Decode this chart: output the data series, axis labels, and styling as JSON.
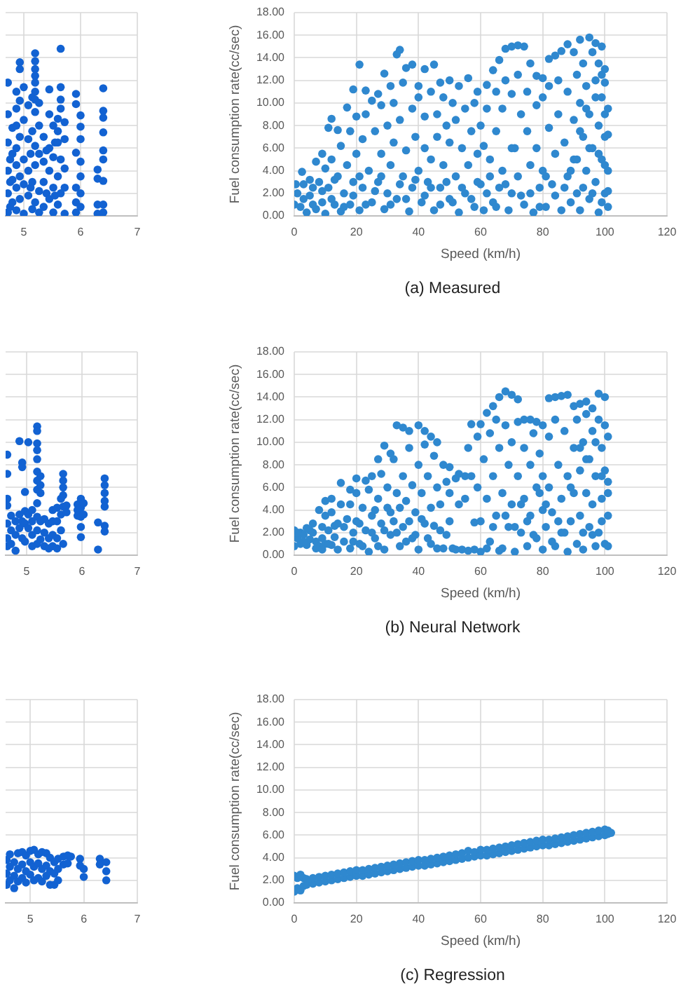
{
  "chart_data": [
    {
      "type": "scatter",
      "color": "#1262d2",
      "marker": "circle",
      "grid": true,
      "tick_labels": "x",
      "xlim": [
        4.68,
        7
      ],
      "xticks": [
        5,
        6,
        7
      ],
      "ylim": [
        0,
        18
      ],
      "yticks": [
        {
          "value": 0,
          "label": null
        },
        {
          "value": 2,
          "label": null
        },
        {
          "value": 4,
          "label": null
        },
        {
          "value": 6,
          "label": null
        },
        {
          "value": 8,
          "label": null
        },
        {
          "value": 10,
          "label": null
        },
        {
          "value": 12,
          "label": null
        },
        {
          "value": 14,
          "label": null
        },
        {
          "value": 16,
          "label": null
        },
        {
          "value": 18,
          "label": null
        }
      ],
      "x": [
        4.72,
        4.72,
        4.72,
        4.72,
        4.72,
        4.72,
        4.76,
        4.76,
        4.76,
        4.8,
        4.8,
        4.8,
        4.8,
        4.87,
        4.87,
        4.87,
        4.87,
        4.87,
        4.87,
        4.87,
        4.93,
        4.93,
        4.93,
        4.93,
        4.93,
        4.93,
        5.0,
        5.0,
        5.0,
        5.0,
        5.0,
        5.08,
        5.08,
        5.08,
        5.08,
        5.12,
        5.12,
        5.15,
        5.15,
        5.15,
        5.15,
        5.2,
        5.2,
        5.2,
        5.2,
        5.2,
        5.2,
        5.2,
        5.2,
        5.2,
        5.2,
        5.2,
        5.27,
        5.27,
        5.27,
        5.27,
        5.27,
        5.35,
        5.35,
        5.35,
        5.35,
        5.4,
        5.4,
        5.45,
        5.45,
        5.45,
        5.45,
        5.45,
        5.52,
        5.52,
        5.52,
        5.52,
        5.55,
        5.55,
        5.6,
        5.6,
        5.6,
        5.6,
        5.6,
        5.65,
        5.65,
        5.65,
        5.65,
        5.65,
        5.65,
        5.72,
        5.72,
        5.72,
        5.72,
        5.72,
        5.92,
        5.92,
        5.92,
        5.92,
        5.92,
        5.92,
        6.0,
        6.0,
        6.0,
        6.0,
        6.0,
        6.0,
        6.0,
        6.3,
        6.3,
        6.3,
        6.3,
        6.4,
        6.4,
        6.4,
        6.4,
        6.4,
        6.4,
        6.4,
        6.4,
        6.4
      ],
      "values": [
        11.8,
        9.0,
        6.5,
        4.0,
        2.0,
        0.3,
        5.0,
        3.0,
        0.8,
        7.8,
        5.5,
        3.2,
        1.2,
        11.0,
        9.5,
        8.0,
        6.0,
        4.5,
        2.5,
        0.5,
        13.6,
        13.0,
        10.2,
        7.0,
        3.5,
        1.5,
        11.4,
        8.5,
        5.0,
        2.8,
        0.2,
        9.8,
        6.8,
        4.0,
        1.8,
        5.5,
        2.5,
        10.5,
        7.5,
        3.0,
        0.6,
        14.4,
        13.7,
        13.0,
        12.4,
        11.8,
        11.0,
        10.3,
        9.2,
        6.2,
        4.5,
        1.2,
        10.0,
        8.0,
        5.5,
        2.2,
        0.3,
        7.0,
        4.8,
        3.0,
        0.8,
        5.8,
        2.0,
        11.2,
        9.0,
        6.0,
        4.0,
        1.5,
        8.0,
        5.2,
        2.5,
        0.3,
        6.5,
        1.8,
        8.6,
        7.5,
        6.5,
        3.5,
        1.0,
        14.8,
        11.4,
        10.3,
        9.5,
        5.0,
        2.0,
        8.3,
        6.8,
        4.2,
        2.5,
        0.2,
        10.8,
        9.9,
        5.6,
        2.5,
        1.2,
        0.3,
        8.9,
        7.9,
        6.8,
        4.8,
        3.5,
        2.0,
        0.8,
        4.1,
        3.3,
        1.0,
        0.2,
        11.3,
        9.3,
        8.7,
        7.4,
        5.8,
        5.0,
        3.1,
        1.0,
        0.3
      ]
    },
    {
      "type": "scatter",
      "color": "#2f88cf",
      "marker": "circle",
      "grid": true,
      "xlabel": "Speed (km/h)",
      "ylabel": "Fuel consumption rate(cc/sec)",
      "annotations": [
        "(a) Measured"
      ],
      "xlim": [
        0,
        120
      ],
      "xticks": [
        0,
        20,
        40,
        60,
        80,
        100,
        120
      ],
      "ylim": [
        0,
        18
      ],
      "yticks": [
        {
          "value": 0,
          "label": "0.00"
        },
        {
          "value": 2,
          "label": "2.00"
        },
        {
          "value": 4,
          "label": "4.00"
        },
        {
          "value": 6,
          "label": "6.00"
        },
        {
          "value": 8,
          "label": "8.00"
        },
        {
          "value": 10,
          "label": "10.00"
        },
        {
          "value": 12,
          "label": "12.00"
        },
        {
          "value": 14,
          "label": "14.00"
        },
        {
          "value": 16,
          "label": "16.00"
        },
        {
          "value": 18,
          "label": "18.00"
        }
      ],
      "x": [
        0.5,
        2.5,
        5,
        7,
        9,
        11,
        12,
        14,
        17,
        19,
        21,
        23,
        25,
        27,
        29,
        31,
        33,
        34,
        36,
        38,
        40,
        42,
        45,
        47,
        50,
        53,
        56,
        59,
        62,
        64,
        66,
        68,
        70,
        72,
        74,
        76,
        78,
        80,
        82,
        84,
        86,
        88,
        90,
        92,
        95,
        97,
        99,
        100,
        101,
        0,
        1,
        2,
        3,
        4,
        5,
        6,
        7,
        8,
        9,
        10,
        10,
        11,
        12,
        13,
        14,
        15,
        15,
        16,
        17,
        18,
        18,
        19,
        20,
        20,
        21,
        22,
        22,
        23,
        24,
        25,
        26,
        27,
        28,
        28,
        29,
        30,
        30,
        31,
        32,
        32,
        33,
        34,
        35,
        35,
        36,
        37,
        38,
        38,
        39,
        40,
        40,
        41,
        42,
        42,
        43,
        44,
        44,
        45,
        46,
        46,
        47,
        48,
        48,
        49,
        50,
        50,
        51,
        52,
        52,
        53,
        54,
        55,
        55,
        56,
        57,
        58,
        58,
        59,
        60,
        60,
        61,
        61,
        62,
        63,
        64,
        65,
        65,
        66,
        67,
        67,
        68,
        69,
        70,
        70,
        71,
        72,
        72,
        73,
        74,
        75,
        75,
        76,
        77,
        78,
        78,
        79,
        80,
        80,
        81,
        82,
        82,
        83,
        84,
        85,
        85,
        86,
        87,
        88,
        88,
        89,
        90,
        90,
        91,
        91,
        92,
        92,
        93,
        93,
        94,
        94,
        95,
        95,
        96,
        96,
        97,
        97,
        98,
        98,
        98,
        99,
        99,
        100,
        100,
        100,
        101,
        101,
        101,
        3,
        6,
        9,
        12,
        13,
        16,
        19,
        21,
        23,
        26,
        28,
        31,
        34,
        36,
        39,
        42,
        44,
        47,
        49,
        51,
        54,
        57,
        59,
        62,
        63,
        65,
        68,
        70,
        73,
        76,
        79,
        81,
        84,
        87,
        89,
        91,
        92,
        93,
        94,
        95,
        96,
        97,
        98,
        99,
        99,
        100,
        100,
        101
      ],
      "values": [
        2.8,
        3.9,
        3.2,
        4.8,
        5.5,
        7.8,
        8.6,
        7.6,
        9.6,
        11.2,
        13.4,
        11.1,
        10.2,
        10.8,
        12.6,
        11.5,
        14.3,
        14.7,
        13.1,
        13.4,
        11.5,
        13.0,
        13.4,
        11.8,
        12.0,
        11.5,
        12.2,
        11.0,
        11.6,
        12.9,
        13.8,
        14.8,
        15.0,
        15.1,
        15.0,
        13.5,
        12.4,
        12.2,
        13.9,
        14.2,
        14.6,
        15.2,
        14.5,
        15.6,
        15.8,
        15.3,
        15.0,
        13.0,
        7.2,
        1.0,
        2.0,
        0.8,
        1.5,
        0.3,
        1.8,
        2.5,
        0.6,
        3.0,
        1.2,
        4.2,
        0.2,
        2.5,
        5.0,
        1.0,
        3.5,
        6.2,
        0.4,
        2.0,
        4.5,
        7.5,
        1.0,
        3.0,
        8.8,
        5.5,
        0.5,
        2.5,
        6.8,
        9.0,
        4.0,
        1.2,
        7.5,
        3.0,
        9.8,
        5.5,
        0.6,
        2.0,
        8.0,
        4.5,
        10.0,
        6.5,
        1.5,
        8.5,
        3.5,
        11.8,
        5.8,
        0.4,
        9.5,
        2.5,
        7.0,
        4.0,
        10.5,
        1.2,
        6.0,
        8.8,
        3.0,
        11.0,
        5.0,
        0.5,
        9.0,
        7.0,
        2.5,
        10.5,
        4.5,
        8.0,
        1.5,
        6.5,
        10.0,
        3.5,
        8.5,
        0.3,
        6.0,
        9.5,
        2.0,
        4.5,
        7.5,
        0.8,
        10.0,
        5.5,
        2.8,
        8.0,
        0.5,
        6.2,
        9.5,
        3.5,
        1.2,
        11.0,
        7.5,
        2.5,
        9.5,
        4.0,
        12.0,
        0.5,
        10.8,
        2.0,
        6.0,
        12.5,
        3.5,
        9.0,
        1.0,
        7.5,
        11.0,
        4.5,
        0.3,
        9.8,
        6.0,
        2.5,
        10.5,
        4.0,
        0.8,
        7.8,
        11.5,
        2.8,
        5.5,
        12.0,
        9.0,
        0.5,
        6.5,
        3.5,
        11.0,
        1.2,
        8.5,
        5.0,
        12.5,
        2.0,
        10.0,
        0.5,
        7.0,
        13.5,
        4.0,
        11.5,
        1.5,
        9.0,
        14.5,
        6.0,
        12.0,
        3.0,
        0.3,
        8.0,
        13.5,
        10.5,
        5.0,
        2.0,
        11.8,
        7.0,
        4.0,
        0.8,
        9.5,
        2.8,
        1.0,
        2.2,
        1.5,
        3.2,
        0.8,
        1.8,
        3.5,
        1.0,
        2.2,
        3.5,
        1.0,
        2.8,
        1.5,
        3.2,
        1.8,
        2.5,
        1.0,
        3.0,
        1.2,
        2.5,
        1.5,
        3.0,
        2.0,
        5.0,
        0.8,
        2.8,
        6.0,
        1.8,
        2.0,
        0.8,
        3.5,
        1.8,
        2.5,
        4.0,
        5.0,
        7.5,
        2.5,
        9.5,
        6.0,
        2.0,
        10.5,
        5.5,
        1.2,
        12.5,
        9.0,
        4.5,
        2.2
      ]
    },
    {
      "type": "scatter",
      "color": "#1262d2",
      "marker": "circle",
      "grid": true,
      "tick_labels": "x",
      "xlim": [
        4.62,
        7
      ],
      "xticks": [
        5,
        6,
        7
      ],
      "ylim": [
        0,
        18
      ],
      "yticks": [
        {
          "value": 0,
          "label": null
        },
        {
          "value": 2,
          "label": null
        },
        {
          "value": 4,
          "label": null
        },
        {
          "value": 6,
          "label": null
        },
        {
          "value": 8,
          "label": null
        },
        {
          "value": 10,
          "label": null
        },
        {
          "value": 12,
          "label": null
        },
        {
          "value": 14,
          "label": null
        },
        {
          "value": 16,
          "label": null
        },
        {
          "value": 18,
          "label": null
        }
      ],
      "x": [
        4.65,
        4.65,
        4.65,
        4.65,
        4.65,
        4.65,
        4.65,
        4.72,
        4.72,
        4.72,
        4.8,
        4.8,
        4.8,
        4.87,
        4.87,
        4.87,
        4.92,
        4.92,
        4.92,
        4.92,
        4.97,
        4.97,
        4.97,
        4.97,
        5.03,
        5.03,
        5.03,
        5.1,
        5.1,
        5.1,
        5.1,
        5.19,
        5.19,
        5.19,
        5.19,
        5.19,
        5.19,
        5.19,
        5.19,
        5.19,
        5.19,
        5.19,
        5.19,
        5.25,
        5.25,
        5.25,
        5.25,
        5.25,
        5.32,
        5.32,
        5.32,
        5.4,
        5.4,
        5.4,
        5.47,
        5.47,
        5.47,
        5.47,
        5.55,
        5.55,
        5.55,
        5.55,
        5.62,
        5.62,
        5.62,
        5.66,
        5.66,
        5.66,
        5.66,
        5.66,
        5.66,
        5.72,
        5.72,
        5.92,
        5.92,
        5.92,
        5.98,
        5.98,
        5.98,
        5.98,
        5.98,
        6.03,
        6.03,
        6.29,
        6.29,
        6.41,
        6.41,
        6.41,
        6.41,
        6.41,
        6.41,
        6.41
      ],
      "values": [
        8.9,
        7.2,
        5.0,
        4.4,
        2.8,
        1.5,
        0.8,
        3.5,
        2.2,
        1.0,
        3.0,
        1.8,
        0.4,
        10.1,
        3.6,
        2.4,
        8.2,
        7.8,
        3.0,
        1.5,
        5.6,
        3.9,
        2.8,
        1.2,
        10.0,
        3.6,
        2.4,
        4.0,
        3.0,
        1.8,
        0.8,
        11.4,
        11.0,
        9.9,
        9.3,
        8.5,
        7.4,
        6.6,
        5.8,
        4.6,
        3.4,
        2.2,
        1.0,
        7.0,
        6.2,
        5.5,
        3.0,
        1.4,
        3.2,
        2.0,
        0.8,
        2.8,
        1.5,
        0.6,
        4.0,
        3.0,
        1.8,
        0.8,
        4.2,
        3.0,
        1.5,
        0.6,
        5.0,
        3.6,
        2.2,
        7.2,
        6.6,
        6.0,
        5.3,
        4.3,
        1.0,
        4.4,
        3.8,
        4.5,
        4.0,
        3.5,
        5.0,
        4.2,
        3.4,
        2.5,
        1.6,
        4.6,
        3.6,
        2.9,
        0.5,
        6.8,
        6.2,
        5.5,
        4.8,
        4.3,
        2.6,
        2.1
      ]
    },
    {
      "type": "scatter",
      "color": "#2f88cf",
      "marker": "circle",
      "grid": true,
      "xlabel": "Speed (km/h)",
      "ylabel": "Fuel consumption rate(cc/sec)",
      "annotations": [
        "(b) Neural Network"
      ],
      "xlim": [
        0,
        120
      ],
      "xticks": [
        0,
        20,
        40,
        60,
        80,
        100,
        120
      ],
      "ylim": [
        0,
        18
      ],
      "yticks": [
        {
          "value": 0,
          "label": "0.00"
        },
        {
          "value": 2,
          "label": "2.00"
        },
        {
          "value": 4,
          "label": "4.00"
        },
        {
          "value": 6,
          "label": "6.00"
        },
        {
          "value": 8,
          "label": "8.00"
        },
        {
          "value": 10,
          "label": "10.00"
        },
        {
          "value": 12,
          "label": "12.00"
        },
        {
          "value": 14,
          "label": "14.00"
        },
        {
          "value": 16,
          "label": "16.00"
        },
        {
          "value": 18,
          "label": "18.00"
        }
      ],
      "x": [
        0,
        2,
        4,
        6,
        8,
        10,
        12,
        15,
        18,
        20,
        23,
        25,
        27,
        29,
        31,
        33,
        35,
        37,
        40,
        42,
        44,
        46,
        48,
        50,
        53,
        55,
        57,
        60,
        62,
        64,
        66,
        68,
        70,
        72,
        74,
        76,
        78,
        80,
        82,
        84,
        86,
        88,
        90,
        92,
        94,
        96,
        98,
        100,
        101,
        0,
        1,
        2,
        3,
        4,
        5,
        6,
        7,
        8,
        9,
        9,
        10,
        10,
        11,
        12,
        12,
        13,
        14,
        15,
        16,
        17,
        18,
        18,
        19,
        20,
        20,
        21,
        22,
        23,
        24,
        24,
        25,
        26,
        27,
        28,
        28,
        29,
        30,
        30,
        31,
        32,
        32,
        33,
        34,
        35,
        35,
        36,
        37,
        38,
        38,
        39,
        40,
        40,
        41,
        42,
        42,
        43,
        44,
        44,
        45,
        46,
        47,
        47,
        48,
        49,
        50,
        50,
        51,
        52,
        53,
        54,
        55,
        56,
        56,
        57,
        58,
        59,
        59,
        60,
        60,
        61,
        62,
        63,
        63,
        64,
        65,
        65,
        66,
        67,
        67,
        68,
        69,
        69,
        70,
        70,
        71,
        72,
        72,
        73,
        74,
        74,
        75,
        76,
        76,
        77,
        78,
        78,
        79,
        80,
        80,
        80,
        81,
        82,
        82,
        83,
        84,
        84,
        85,
        86,
        86,
        87,
        88,
        88,
        89,
        90,
        90,
        91,
        91,
        92,
        92,
        93,
        93,
        94,
        94,
        95,
        95,
        96,
        96,
        97,
        97,
        98,
        98,
        99,
        99,
        100,
        100,
        100,
        101,
        101,
        1,
        3,
        5,
        7,
        9,
        11,
        13,
        14,
        16,
        19,
        21,
        22,
        25,
        26,
        27,
        29,
        31,
        33,
        34,
        36,
        37,
        39,
        41,
        43,
        45,
        46,
        49,
        52,
        58,
        62,
        64,
        66,
        68,
        71,
        73,
        75,
        77,
        79,
        81,
        83,
        85,
        87,
        89,
        92,
        93,
        94,
        96,
        97,
        99,
        99,
        101,
        101
      ],
      "values": [
        2.2,
        2.0,
        2.4,
        2.8,
        4.0,
        4.8,
        5.0,
        6.4,
        5.8,
        6.8,
        6.6,
        7.0,
        8.5,
        9.7,
        9.0,
        11.5,
        11.3,
        11.0,
        11.5,
        11.0,
        10.5,
        10.0,
        8.0,
        7.8,
        7.2,
        7.0,
        11.6,
        11.6,
        12.6,
        13.2,
        14.0,
        14.5,
        14.2,
        13.8,
        12.0,
        12.0,
        11.8,
        11.5,
        13.9,
        14.0,
        14.1,
        14.2,
        13.2,
        13.4,
        13.6,
        13.0,
        14.3,
        14.0,
        6.5,
        0.8,
        1.5,
        1.0,
        1.8,
        0.9,
        1.4,
        2.0,
        1.2,
        0.8,
        2.5,
        1.5,
        3.5,
        1.0,
        2.2,
        3.8,
        0.9,
        1.6,
        2.8,
        4.5,
        1.2,
        3.2,
        0.6,
        4.5,
        2.0,
        5.5,
        3.0,
        1.0,
        4.2,
        2.2,
        5.8,
        0.3,
        3.5,
        1.5,
        5.0,
        2.8,
        7.2,
        0.5,
        4.2,
        6.0,
        1.8,
        8.5,
        3.0,
        5.5,
        0.8,
        7.0,
        2.5,
        4.8,
        9.5,
        1.5,
        6.2,
        3.8,
        8.0,
        0.5,
        5.5,
        2.8,
        9.8,
        7.0,
        1.0,
        4.2,
        8.8,
        6.0,
        2.2,
        4.5,
        0.6,
        6.5,
        3.0,
        5.5,
        0.6,
        6.8,
        4.5,
        0.5,
        5.0,
        9.5,
        0.4,
        7.0,
        2.9,
        10.5,
        6.0,
        3.0,
        0.3,
        8.5,
        5.0,
        10.8,
        1.2,
        7.0,
        3.5,
        12.0,
        9.5,
        0.6,
        5.5,
        11.5,
        2.5,
        8.0,
        10.0,
        4.5,
        0.3,
        7.0,
        11.8,
        2.0,
        9.5,
        5.0,
        0.8,
        8.0,
        3.5,
        10.8,
        6.0,
        1.5,
        9.0,
        4.0,
        7.0,
        0.5,
        2.5,
        10.5,
        6.0,
        3.8,
        12.0,
        0.8,
        8.0,
        5.0,
        2.0,
        11.0,
        7.0,
        0.3,
        3.0,
        9.5,
        5.5,
        1.0,
        12.0,
        7.5,
        3.5,
        10.0,
        0.5,
        5.5,
        12.5,
        2.5,
        8.5,
        11.0,
        4.5,
        0.8,
        7.0,
        12.0,
        2.0,
        9.5,
        5.0,
        11.5,
        1.0,
        7.5,
        3.5,
        0.8,
        2.0,
        1.2,
        2.2,
        0.6,
        0.5,
        1.0,
        2.6,
        0.5,
        2.5,
        1.2,
        2.8,
        0.8,
        2.0,
        4.0,
        0.8,
        2.2,
        3.8,
        2.0,
        4.2,
        1.2,
        3.0,
        1.8,
        3.2,
        1.5,
        2.6,
        0.6,
        1.8,
        0.5,
        0.5,
        0.6,
        2.5,
        0.4,
        3.5,
        2.5,
        4.5,
        3.0,
        1.8,
        5.5,
        4.5,
        1.2,
        3.0,
        2.0,
        6.0,
        9.5,
        2.0,
        8.5,
        1.8,
        10.0,
        3.0,
        7.0,
        5.5,
        10.5
      ]
    },
    {
      "type": "scatter",
      "color": "#1262d2",
      "marker": "circle",
      "grid": true,
      "tick_labels": "x",
      "xlim": [
        4.54,
        7
      ],
      "xticks": [
        5,
        6,
        7
      ],
      "ylim": [
        0,
        18
      ],
      "yticks": [
        {
          "value": 0,
          "label": null
        },
        {
          "value": 2,
          "label": null
        },
        {
          "value": 4,
          "label": null
        },
        {
          "value": 6,
          "label": null
        },
        {
          "value": 8,
          "label": null
        },
        {
          "value": 10,
          "label": null
        },
        {
          "value": 12,
          "label": null
        },
        {
          "value": 14,
          "label": null
        },
        {
          "value": 16,
          "label": null
        },
        {
          "value": 18,
          "label": null
        }
      ],
      "x": [
        4.56,
        4.56,
        4.56,
        4.62,
        4.62,
        4.62,
        4.7,
        4.7,
        4.7,
        4.77,
        4.77,
        4.77,
        4.85,
        4.85,
        4.85,
        4.92,
        4.92,
        4.92,
        5.0,
        5.0,
        5.0,
        5.07,
        5.07,
        5.07,
        5.15,
        5.15,
        5.15,
        5.22,
        5.22,
        5.22,
        5.3,
        5.3,
        5.3,
        5.37,
        5.37,
        5.37,
        5.45,
        5.45,
        5.45,
        5.52,
        5.52,
        5.52,
        5.62,
        5.62,
        5.7,
        5.7,
        5.76,
        5.93,
        5.93,
        6.0,
        6.0,
        6.3,
        6.3,
        6.42,
        6.42,
        6.42
      ],
      "values": [
        3.8,
        2.6,
        1.6,
        4.3,
        3.2,
        2.0,
        3.6,
        2.4,
        1.3,
        4.4,
        3.0,
        1.9,
        4.5,
        3.4,
        2.2,
        4.2,
        2.8,
        1.8,
        4.6,
        3.6,
        2.5,
        4.7,
        3.2,
        2.0,
        4.3,
        3.5,
        2.2,
        4.5,
        3.0,
        1.9,
        4.4,
        3.3,
        2.4,
        4.0,
        2.8,
        1.6,
        3.6,
        2.6,
        1.6,
        3.9,
        3.0,
        2.0,
        4.1,
        3.4,
        4.2,
        3.5,
        4.1,
        3.9,
        3.3,
        3.0,
        2.3,
        3.9,
        3.4,
        3.6,
        2.8,
        2.0
      ]
    },
    {
      "type": "scatter",
      "color": "#2f88cf",
      "marker": "circle",
      "grid": true,
      "xlabel": "Speed (km/h)",
      "ylabel": "Fuel consumption rate(cc/sec)",
      "annotations": [
        "(c) Regression"
      ],
      "xlim": [
        0,
        120
      ],
      "xticks": [
        0,
        20,
        40,
        60,
        80,
        100,
        120
      ],
      "ylim": [
        0,
        18
      ],
      "yticks": [
        {
          "value": 0,
          "label": "0.00"
        },
        {
          "value": 2,
          "label": "2.00"
        },
        {
          "value": 4,
          "label": "4.00"
        },
        {
          "value": 6,
          "label": "6.00"
        },
        {
          "value": 8,
          "label": "8.00"
        },
        {
          "value": 10,
          "label": "10.00"
        },
        {
          "value": 12,
          "label": "12.00"
        },
        {
          "value": 14,
          "label": "14.00"
        },
        {
          "value": 16,
          "label": "16.00"
        },
        {
          "value": 18,
          "label": "18.00"
        }
      ],
      "x": [
        0,
        0,
        1,
        1,
        2,
        2,
        3,
        3,
        4,
        4,
        6,
        6,
        8,
        8,
        10,
        10,
        12,
        12,
        14,
        14,
        16,
        16,
        18,
        18,
        20,
        20,
        22,
        22,
        24,
        24,
        26,
        26,
        28,
        28,
        30,
        30,
        32,
        32,
        34,
        34,
        36,
        36,
        38,
        38,
        40,
        40,
        42,
        42,
        44,
        44,
        46,
        46,
        48,
        48,
        50,
        50,
        52,
        52,
        54,
        54,
        56,
        56,
        58,
        58,
        60,
        60,
        62,
        62,
        64,
        64,
        66,
        66,
        68,
        68,
        70,
        70,
        72,
        72,
        74,
        74,
        76,
        76,
        78,
        78,
        80,
        80,
        82,
        82,
        84,
        84,
        86,
        86,
        88,
        88,
        90,
        90,
        92,
        92,
        94,
        94,
        96,
        96,
        98,
        98,
        100,
        100,
        101,
        101,
        102
      ],
      "values": [
        1.0,
        2.4,
        1.3,
        2.2,
        1.1,
        2.5,
        1.5,
        2.2,
        1.6,
        2.1,
        1.7,
        2.2,
        1.8,
        2.3,
        1.9,
        2.4,
        2.0,
        2.5,
        2.1,
        2.6,
        2.2,
        2.7,
        2.3,
        2.8,
        2.4,
        2.9,
        2.4,
        2.9,
        2.5,
        3.0,
        2.6,
        3.1,
        2.7,
        3.2,
        2.8,
        3.3,
        2.9,
        3.4,
        3.0,
        3.5,
        3.1,
        3.6,
        3.2,
        3.7,
        3.3,
        3.8,
        3.3,
        3.8,
        3.4,
        3.9,
        3.5,
        4.0,
        3.6,
        4.1,
        3.7,
        4.2,
        3.8,
        4.3,
        3.9,
        4.4,
        4.0,
        4.6,
        4.1,
        4.5,
        4.2,
        4.7,
        4.2,
        4.7,
        4.3,
        4.8,
        4.4,
        4.9,
        4.5,
        5.0,
        4.6,
        5.1,
        4.7,
        5.2,
        4.8,
        5.3,
        4.9,
        5.4,
        5.0,
        5.5,
        5.1,
        5.6,
        5.1,
        5.6,
        5.2,
        5.7,
        5.3,
        5.8,
        5.4,
        5.9,
        5.5,
        6.0,
        5.6,
        6.1,
        5.7,
        6.2,
        5.8,
        6.3,
        5.9,
        6.4,
        6.0,
        6.5,
        6.1,
        6.4,
        6.2
      ]
    }
  ]
}
